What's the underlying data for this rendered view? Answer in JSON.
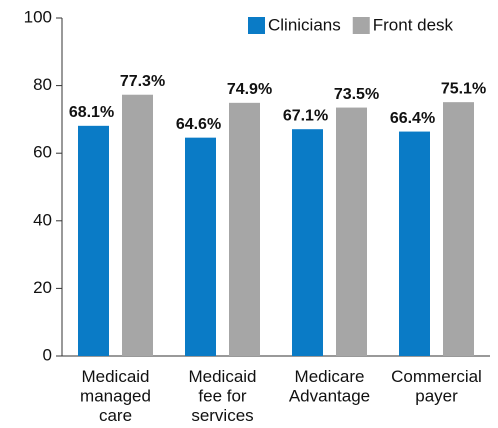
{
  "chart_data": {
    "type": "bar",
    "categories": [
      "Medicaid\nmanaged\ncare",
      "Medicaid\nfee for\nservices",
      "Medicare\nAdvantage",
      "Commercial\npayer"
    ],
    "series": [
      {
        "name": "Clinicians",
        "color": "#0a7bc6",
        "values": [
          68.1,
          64.6,
          67.1,
          66.4
        ],
        "value_labels": [
          "68.1%",
          "64.6%",
          "67.1%",
          "66.4%"
        ]
      },
      {
        "name": "Front desk",
        "color": "#a6a6a6",
        "values": [
          77.3,
          74.9,
          73.5,
          75.1
        ],
        "value_labels": [
          "77.3%",
          "74.9%",
          "73.5%",
          "75.1%"
        ]
      }
    ],
    "ylim": [
      0,
      100
    ],
    "yticks": [
      0,
      20,
      40,
      60,
      80,
      100
    ],
    "legend": "top-right"
  }
}
